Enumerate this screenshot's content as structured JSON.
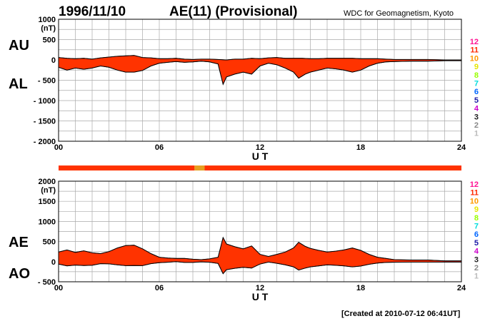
{
  "header": {
    "date": "1996/11/10",
    "title": "AE(11) (Provisional)",
    "source": "WDC for Geomagnetism, Kyoto"
  },
  "footer": {
    "created": "[Created at 2010-07-12 06:41UT]"
  },
  "colors": {
    "fill": "#ff3300",
    "outline": "#000000",
    "grid": "#aaaaaa",
    "bar_main": "#ff3300",
    "bar_alt": "#e6a020"
  },
  "station_counts": {
    "labels": [
      "12",
      "11",
      "10",
      "9",
      "8",
      "7",
      "6",
      "5",
      "4",
      "3",
      "2",
      "1"
    ],
    "colors": [
      "#ff1493",
      "#ff2a00",
      "#ff9900",
      "#e6e600",
      "#99ff00",
      "#00dddd",
      "#0066ff",
      "#1a1aa6",
      "#cc00cc",
      "#222222",
      "#888888",
      "#bbbbbb"
    ]
  },
  "chart_data": [
    {
      "type": "area",
      "panel": "AU/AL",
      "labels_upper": "AU",
      "labels_lower": "AL",
      "unit": "(nT)",
      "xlabel": "U T",
      "xlim": [
        0,
        24
      ],
      "ylim": [
        -2000,
        1000
      ],
      "yticks": [
        1000,
        500,
        0,
        -500,
        -1000,
        -1500,
        -2000
      ],
      "ytick_labels": [
        "1000",
        "500",
        "0",
        "- 500",
        "- 1000",
        "- 1500",
        "- 2000"
      ],
      "xticks": [
        0,
        6,
        12,
        18,
        24
      ],
      "xtick_labels": [
        "00",
        "06",
        "12",
        "18",
        "24"
      ],
      "grid": true,
      "series": [
        {
          "name": "AU",
          "x": [
            0,
            0.5,
            1,
            1.5,
            2,
            2.5,
            3,
            3.5,
            4,
            4.5,
            5,
            5.5,
            6,
            6.5,
            7,
            7.5,
            8,
            8.5,
            9,
            9.5,
            10,
            10.5,
            11,
            11.5,
            12,
            12.5,
            13,
            13.5,
            14,
            14.5,
            15,
            15.5,
            16,
            16.5,
            17,
            17.5,
            18,
            18.5,
            19,
            19.5,
            20,
            21,
            22,
            23,
            24
          ],
          "values": [
            60,
            40,
            30,
            40,
            20,
            50,
            70,
            90,
            100,
            110,
            60,
            50,
            30,
            30,
            40,
            20,
            10,
            20,
            20,
            10,
            0,
            20,
            20,
            40,
            30,
            50,
            60,
            40,
            40,
            40,
            30,
            30,
            40,
            40,
            40,
            40,
            30,
            30,
            30,
            20,
            10,
            10,
            10,
            0,
            0
          ]
        },
        {
          "name": "AL",
          "x": [
            0,
            0.5,
            1,
            1.5,
            2,
            2.5,
            3,
            3.5,
            4,
            4.5,
            5,
            5.5,
            6,
            6.5,
            7,
            7.5,
            8,
            8.5,
            9,
            9.5,
            9.8,
            10,
            10.5,
            11,
            11.5,
            12,
            12.5,
            13,
            13.5,
            14,
            14.3,
            14.7,
            15,
            15.5,
            16,
            16.5,
            17,
            17.5,
            18,
            18.5,
            19,
            19.5,
            20,
            21,
            22,
            23,
            24
          ],
          "values": [
            -180,
            -250,
            -200,
            -230,
            -200,
            -150,
            -180,
            -250,
            -300,
            -300,
            -260,
            -150,
            -80,
            -60,
            -40,
            -60,
            -50,
            -30,
            -50,
            -100,
            -600,
            -420,
            -350,
            -300,
            -350,
            -150,
            -80,
            -120,
            -200,
            -300,
            -450,
            -350,
            -300,
            -250,
            -200,
            -220,
            -250,
            -300,
            -250,
            -150,
            -80,
            -50,
            -40,
            -30,
            -30,
            -20,
            -20
          ]
        }
      ]
    },
    {
      "type": "area",
      "panel": "AE/AO",
      "labels_upper": "AE",
      "labels_lower": "AO",
      "unit": "(nT)",
      "xlabel": "U T",
      "xlim": [
        0,
        24
      ],
      "ylim": [
        -500,
        2000
      ],
      "yticks": [
        2000,
        1500,
        1000,
        500,
        0,
        -500
      ],
      "ytick_labels": [
        "2000",
        "1500",
        "1000",
        "500",
        "0",
        "- 500"
      ],
      "xticks": [
        0,
        6,
        12,
        18,
        24
      ],
      "xtick_labels": [
        "00",
        "06",
        "12",
        "18",
        "24"
      ],
      "grid": true,
      "series": [
        {
          "name": "AE",
          "x": [
            0,
            0.5,
            1,
            1.5,
            2,
            2.5,
            3,
            3.5,
            4,
            4.5,
            5,
            5.5,
            6,
            6.5,
            7,
            7.5,
            8,
            8.5,
            9,
            9.5,
            9.8,
            10,
            10.5,
            11,
            11.5,
            12,
            12.5,
            13,
            13.5,
            14,
            14.3,
            14.7,
            15,
            15.5,
            16,
            16.5,
            17,
            17.5,
            18,
            18.5,
            19,
            19.5,
            20,
            21,
            22,
            23,
            24
          ],
          "values": [
            240,
            290,
            230,
            270,
            220,
            200,
            250,
            340,
            400,
            410,
            320,
            200,
            110,
            90,
            80,
            80,
            60,
            50,
            70,
            110,
            600,
            440,
            370,
            320,
            390,
            180,
            130,
            180,
            240,
            340,
            480,
            380,
            330,
            280,
            240,
            260,
            290,
            340,
            280,
            180,
            110,
            80,
            50,
            40,
            40,
            20,
            20
          ]
        },
        {
          "name": "AO",
          "x": [
            0,
            0.5,
            1,
            1.5,
            2,
            2.5,
            3,
            3.5,
            4,
            4.5,
            5,
            5.5,
            6,
            6.5,
            7,
            7.5,
            8,
            8.5,
            9,
            9.5,
            9.8,
            10,
            10.5,
            11,
            11.5,
            12,
            12.5,
            13,
            13.5,
            14,
            14.3,
            14.7,
            15,
            15.5,
            16,
            16.5,
            17,
            17.5,
            18,
            18.5,
            19,
            19.5,
            20,
            21,
            22,
            23,
            24
          ],
          "values": [
            -60,
            -105,
            -85,
            -95,
            -90,
            -50,
            -55,
            -80,
            -100,
            -95,
            -100,
            -50,
            -25,
            -15,
            0,
            -20,
            -20,
            -5,
            -15,
            -45,
            -300,
            -200,
            -165,
            -140,
            -160,
            -60,
            -10,
            -40,
            -80,
            -130,
            -210,
            -160,
            -130,
            -105,
            -80,
            -90,
            -105,
            -130,
            -110,
            -65,
            -35,
            -20,
            -15,
            -10,
            -10,
            -10,
            -10
          ]
        }
      ]
    }
  ],
  "indicator_bar": {
    "x_ranges": [
      [
        0,
        8.1
      ],
      [
        8.1,
        8.7
      ],
      [
        8.7,
        24
      ]
    ],
    "states": [
      "12",
      "10",
      "12"
    ]
  }
}
